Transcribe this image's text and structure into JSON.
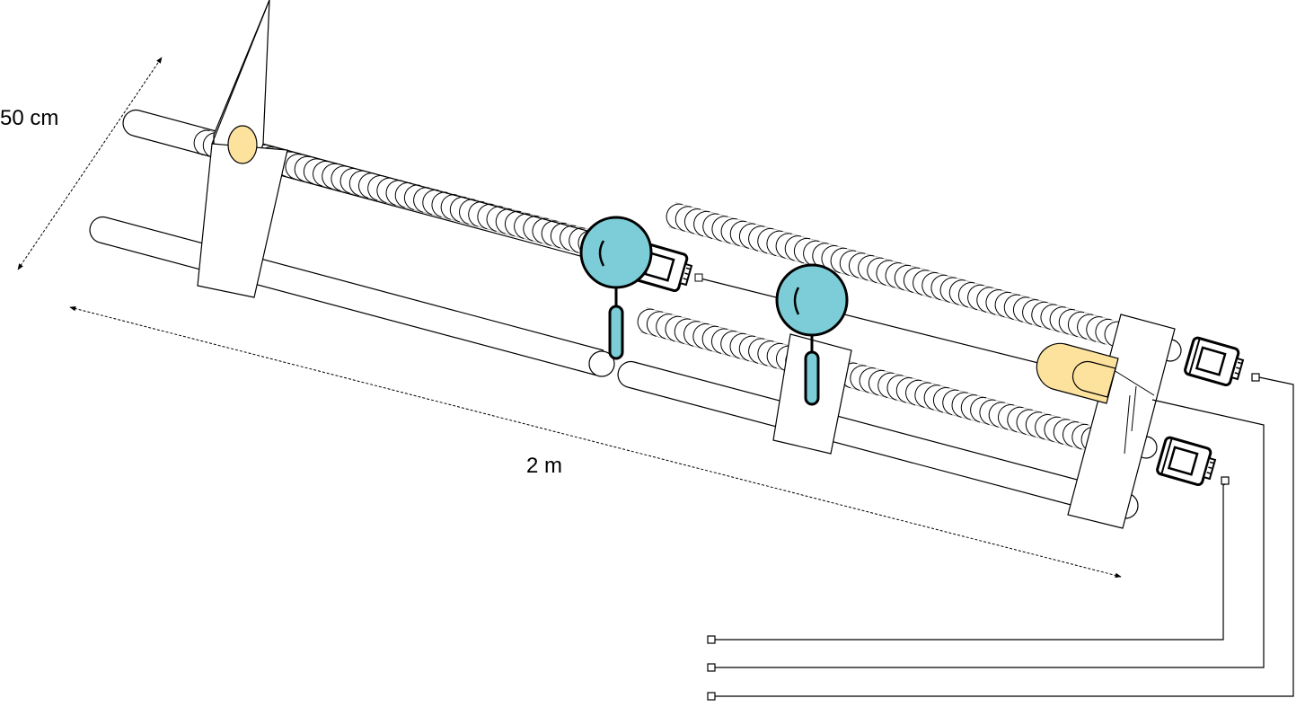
{
  "labels": {
    "width": "50 cm",
    "length": "2 m"
  },
  "colors": {
    "stroke": "#000000",
    "lens": "#7ccdd7",
    "source": "#fde29e",
    "background": "#ffffff"
  },
  "icons": [
    "motor-icon",
    "lens-icon",
    "light-source-icon",
    "connector-terminal-icon"
  ]
}
